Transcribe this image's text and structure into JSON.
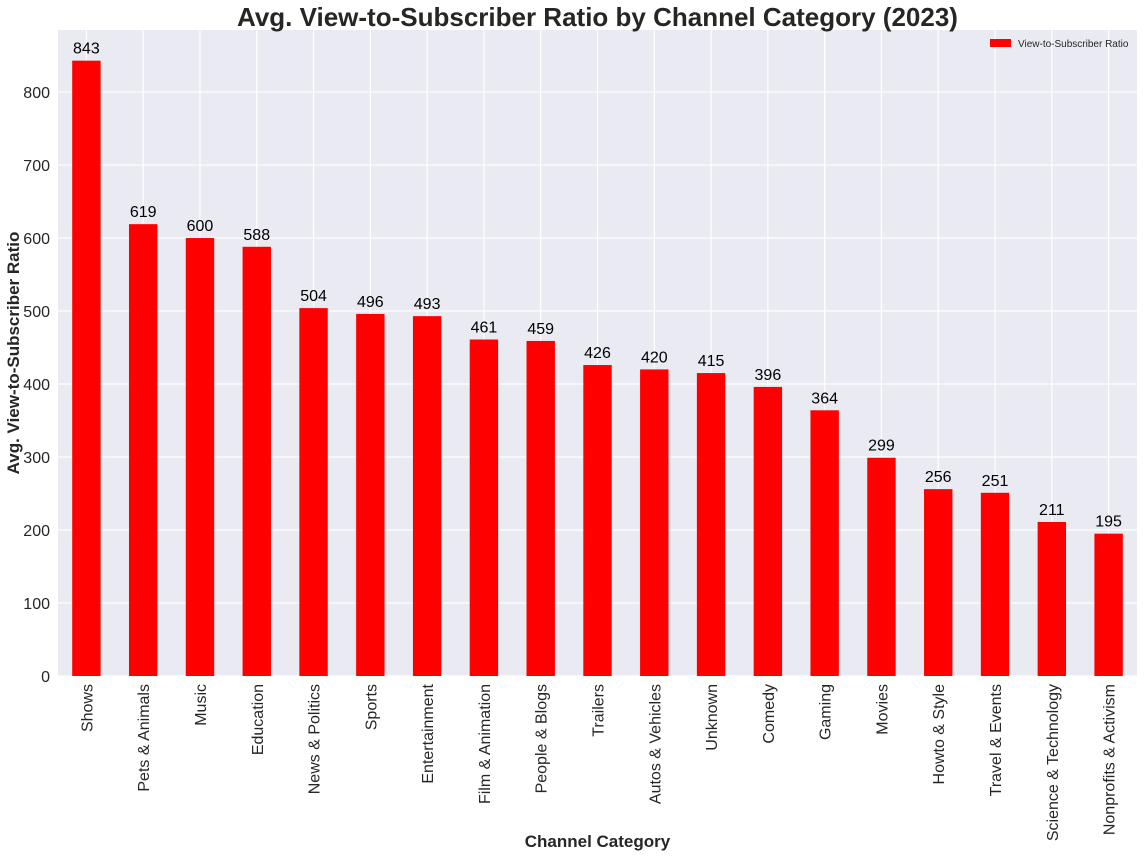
{
  "chart_data": {
    "type": "bar",
    "title": "Avg. View-to-Subscriber Ratio by Channel Category (2023)",
    "xlabel": "Channel Category",
    "ylabel": "Avg. View-to-Subscriber Ratio",
    "categories": [
      "Shows",
      "Pets & Animals",
      "Music",
      "Education",
      "News & Politics",
      "Sports",
      "Entertainment",
      "Film & Animation",
      "People & Blogs",
      "Trailers",
      "Autos & Vehicles",
      "Unknown",
      "Comedy",
      "Gaming",
      "Movies",
      "Howto & Style",
      "Travel & Events",
      "Science & Technology",
      "Nonprofits & Activism"
    ],
    "series": [
      {
        "name": "View-to-Subscriber Ratio",
        "values": [
          843,
          619,
          600,
          588,
          504,
          496,
          493,
          461,
          459,
          426,
          420,
          415,
          396,
          364,
          299,
          256,
          251,
          211,
          195
        ],
        "color": "#ff0000"
      }
    ],
    "data_labels": [
      "843",
      "619",
      "600",
      "588",
      "504",
      "496",
      "493",
      "461",
      "459",
      "426",
      "420",
      "415",
      "396",
      "364",
      "299",
      "256",
      "251",
      "211",
      "195"
    ],
    "yticks": [
      0,
      100,
      200,
      300,
      400,
      500,
      600,
      700,
      800
    ],
    "ylim": [
      0,
      885
    ],
    "grid": true,
    "legend_position": "top-right",
    "plot_background": "#eaeaf2",
    "grid_color": "#ffffff"
  }
}
